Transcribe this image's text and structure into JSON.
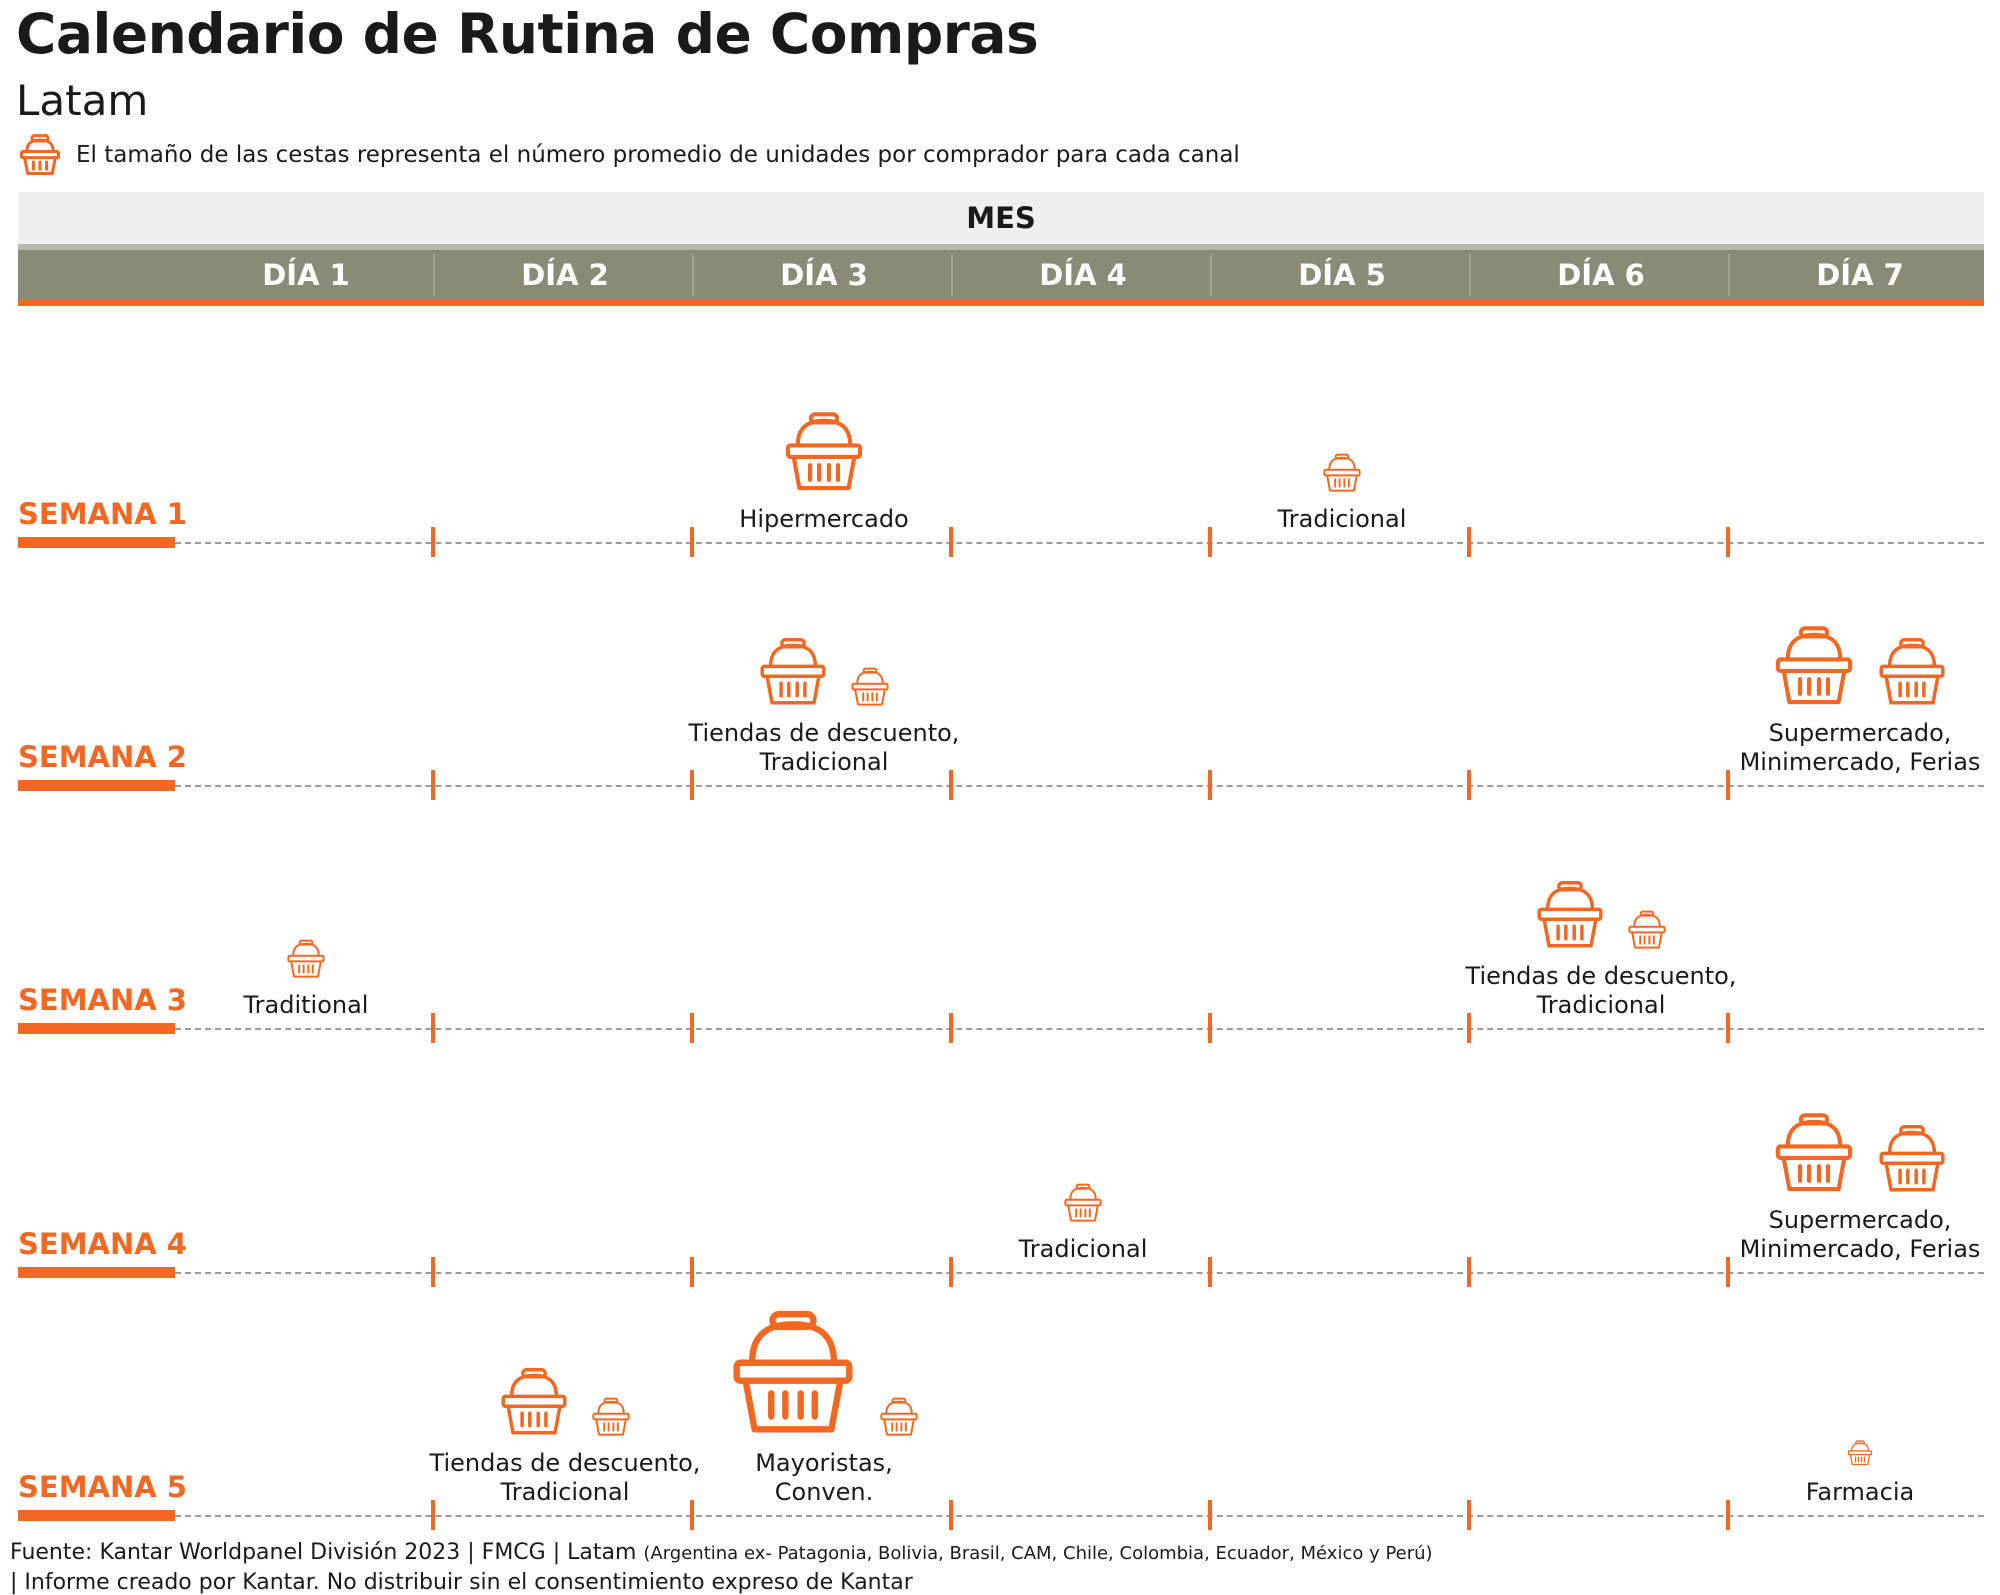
{
  "header": {
    "title": "Calendario de Rutina de Compras",
    "subtitle": "Latam",
    "legend_icon": "basket-icon",
    "legend_text": "El tamaño de las cestas representa el número promedio de unidades por comprador para cada canal"
  },
  "calendar": {
    "month_label": "MES",
    "days": [
      "DÍA 1",
      "DÍA 2",
      "DÍA 3",
      "DÍA 4",
      "DÍA 5",
      "DÍA 6",
      "DÍA 7"
    ],
    "weeks": [
      {
        "label": "SEMANA 1"
      },
      {
        "label": "SEMANA 2"
      },
      {
        "label": "SEMANA 3"
      },
      {
        "label": "SEMANA 4"
      },
      {
        "label": "SEMANA 5"
      }
    ],
    "events": [
      {
        "week": 1,
        "day": 3,
        "label_lines": [
          "Hipermercado"
        ],
        "baskets": [
          "large"
        ]
      },
      {
        "week": 1,
        "day": 5,
        "label_lines": [
          "Tradicional"
        ],
        "baskets": [
          "small"
        ]
      },
      {
        "week": 2,
        "day": 3,
        "label_lines": [
          "Tiendas de descuento,",
          "Tradicional"
        ],
        "baskets": [
          "medium",
          "small"
        ]
      },
      {
        "week": 2,
        "day": 7,
        "label_lines": [
          "Supermercado,",
          "Minimercado, Ferias"
        ],
        "baskets": [
          "large",
          "medium"
        ]
      },
      {
        "week": 3,
        "day": 1,
        "label_lines": [
          "Traditional"
        ],
        "baskets": [
          "small"
        ]
      },
      {
        "week": 3,
        "day": 6,
        "label_lines": [
          "Tiendas de descuento,",
          "Tradicional"
        ],
        "baskets": [
          "medium",
          "small"
        ]
      },
      {
        "week": 4,
        "day": 4,
        "label_lines": [
          "Tradicional"
        ],
        "baskets": [
          "small"
        ]
      },
      {
        "week": 4,
        "day": 7,
        "label_lines": [
          "Supermercado,",
          "Minimercado, Ferias"
        ],
        "baskets": [
          "large",
          "medium"
        ]
      },
      {
        "week": 5,
        "day": 2,
        "label_lines": [
          "Tiendas de descuento,",
          "Tradicional"
        ],
        "baskets": [
          "medium",
          "small"
        ]
      },
      {
        "week": 5,
        "day": 3,
        "label_lines": [
          "Mayoristas,",
          "Conven."
        ],
        "baskets": [
          "xlarge",
          "small"
        ]
      },
      {
        "week": 5,
        "day": 7,
        "label_lines": [
          "Farmacia"
        ],
        "baskets": [
          "tiny"
        ]
      }
    ]
  },
  "footer": {
    "line1_main": "Fuente: Kantar Worldpanel División 2023 | FMCG | Latam ",
    "line1_small": "(Argentina ex- Patagonia, Bolivia, Brasil, CAM, Chile, Colombia, Ecuador, México y Perú)",
    "line2": "| Informe creado por Kantar. No distribuir sin el consentimiento expreso de Kantar"
  },
  "colors": {
    "accent": "#f26722",
    "header_band": "#8b8a76",
    "month_band": "#efefed",
    "dash": "#9b9b9b"
  }
}
